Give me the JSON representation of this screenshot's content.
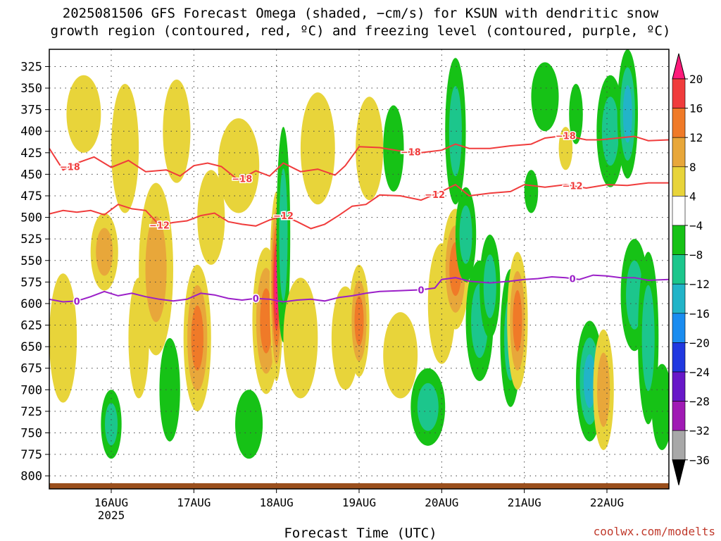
{
  "title": {
    "line1": "2025081506 GFS Forecast Omega (shaded, −cm/s) for KSUN with dendritic snow",
    "line2": "growth region (contoured, red, ºC) and freezing level (contoured, purple, ºC)"
  },
  "xlabel": "Forecast Time (UTC)",
  "credit": "coolwx.com/modelts",
  "chart_data": {
    "type": "heatmap",
    "title": "2025081506 GFS Forecast Omega (shaded, −cm/s) for KSUN with dendritic snow growth region (contoured, red, ºC) and freezing level (contoured, purple, ºC)",
    "xlabel": "Forecast Time (UTC)",
    "ylabel": "",
    "x_range_hours": [
      0,
      180
    ],
    "x_ticks": [
      {
        "hour": 18,
        "label": "16AUG",
        "sub": "2025"
      },
      {
        "hour": 42,
        "label": "17AUG",
        "sub": ""
      },
      {
        "hour": 66,
        "label": "18AUG",
        "sub": ""
      },
      {
        "hour": 90,
        "label": "19AUG",
        "sub": ""
      },
      {
        "hour": 114,
        "label": "20AUG",
        "sub": ""
      },
      {
        "hour": 138,
        "label": "21AUG",
        "sub": ""
      },
      {
        "hour": 162,
        "label": "22AUG",
        "sub": ""
      }
    ],
    "y_range_hpa": [
      815,
      305
    ],
    "y_ticks": [
      325,
      350,
      375,
      400,
      425,
      450,
      475,
      500,
      525,
      550,
      575,
      600,
      625,
      650,
      675,
      700,
      725,
      750,
      775,
      800
    ],
    "grid": true,
    "colorbar": {
      "labels": [
        "20",
        "16",
        "12",
        "8",
        "4",
        "−4",
        "−8",
        "−12",
        "−16",
        "−20",
        "−24",
        "−28",
        "−32",
        "−36"
      ],
      "colors": [
        "#ff1a7a",
        "#f03c3c",
        "#f07a28",
        "#e8a73a",
        "#e8d43a",
        "#ffffff",
        "#16c216",
        "#1cc68c",
        "#22b4c8",
        "#1a8cf0",
        "#2038e0",
        "#6818c8",
        "#a01ab4",
        "#a8a8a8",
        "#000000"
      ]
    },
    "omega_blobs": [
      {
        "t": 4,
        "p": 640,
        "dt": 4,
        "dp": 150,
        "v": 6
      },
      {
        "t": 10,
        "p": 380,
        "dt": 5,
        "dp": 90,
        "v": 5
      },
      {
        "t": 16,
        "p": 540,
        "dt": 4,
        "dp": 90,
        "v": 10
      },
      {
        "t": 18,
        "p": 740,
        "dt": 3,
        "dp": 80,
        "v": -8
      },
      {
        "t": 22,
        "p": 420,
        "dt": 4,
        "dp": 150,
        "v": 6
      },
      {
        "t": 26,
        "p": 640,
        "dt": 3,
        "dp": 140,
        "v": 5
      },
      {
        "t": 31,
        "p": 560,
        "dt": 5,
        "dp": 200,
        "v": 8
      },
      {
        "t": 35,
        "p": 700,
        "dt": 3,
        "dp": 120,
        "v": -6
      },
      {
        "t": 37,
        "p": 400,
        "dt": 4,
        "dp": 120,
        "v": 5
      },
      {
        "t": 43,
        "p": 640,
        "dt": 4,
        "dp": 170,
        "v": 12
      },
      {
        "t": 47,
        "p": 500,
        "dt": 4,
        "dp": 110,
        "v": 6
      },
      {
        "t": 55,
        "p": 440,
        "dt": 6,
        "dp": 110,
        "v": 6
      },
      {
        "t": 58,
        "p": 740,
        "dt": 4,
        "dp": 80,
        "v": -6
      },
      {
        "t": 63,
        "p": 620,
        "dt": 4,
        "dp": 170,
        "v": 12
      },
      {
        "t": 66,
        "p": 580,
        "dt": 2,
        "dp": 220,
        "v": 20
      },
      {
        "t": 68,
        "p": 520,
        "dt": 2,
        "dp": 250,
        "v": -10
      },
      {
        "t": 73,
        "p": 640,
        "dt": 5,
        "dp": 140,
        "v": 5
      },
      {
        "t": 78,
        "p": 420,
        "dt": 5,
        "dp": 130,
        "v": 5
      },
      {
        "t": 86,
        "p": 640,
        "dt": 4,
        "dp": 120,
        "v": 6
      },
      {
        "t": 90,
        "p": 620,
        "dt": 3,
        "dp": 130,
        "v": 12
      },
      {
        "t": 93,
        "p": 420,
        "dt": 4,
        "dp": 120,
        "v": 4
      },
      {
        "t": 100,
        "p": 420,
        "dt": 3,
        "dp": 100,
        "v": -6
      },
      {
        "t": 102,
        "p": 660,
        "dt": 5,
        "dp": 100,
        "v": 5
      },
      {
        "t": 110,
        "p": 720,
        "dt": 5,
        "dp": 90,
        "v": -8
      },
      {
        "t": 114,
        "p": 600,
        "dt": 4,
        "dp": 140,
        "v": 6
      },
      {
        "t": 118,
        "p": 560,
        "dt": 4,
        "dp": 140,
        "v": 12
      },
      {
        "t": 118,
        "p": 400,
        "dt": 3,
        "dp": 170,
        "v": -10
      },
      {
        "t": 121,
        "p": 520,
        "dt": 3,
        "dp": 110,
        "v": -8
      },
      {
        "t": 125,
        "p": 620,
        "dt": 4,
        "dp": 140,
        "v": -8
      },
      {
        "t": 128,
        "p": 580,
        "dt": 3,
        "dp": 120,
        "v": -10
      },
      {
        "t": 134,
        "p": 640,
        "dt": 3,
        "dp": 160,
        "v": -8
      },
      {
        "t": 136,
        "p": 620,
        "dt": 3,
        "dp": 160,
        "v": 14
      },
      {
        "t": 140,
        "p": 470,
        "dt": 2,
        "dp": 50,
        "v": -6
      },
      {
        "t": 144,
        "p": 360,
        "dt": 4,
        "dp": 80,
        "v": -6
      },
      {
        "t": 150,
        "p": 420,
        "dt": 2,
        "dp": 50,
        "v": 5
      },
      {
        "t": 153,
        "p": 380,
        "dt": 2,
        "dp": 70,
        "v": -6
      },
      {
        "t": 157,
        "p": 690,
        "dt": 4,
        "dp": 140,
        "v": -12
      },
      {
        "t": 161,
        "p": 700,
        "dt": 3,
        "dp": 140,
        "v": 10
      },
      {
        "t": 163,
        "p": 400,
        "dt": 4,
        "dp": 130,
        "v": -8
      },
      {
        "t": 168,
        "p": 380,
        "dt": 3,
        "dp": 150,
        "v": -12
      },
      {
        "t": 170,
        "p": 590,
        "dt": 4,
        "dp": 130,
        "v": -10
      },
      {
        "t": 174,
        "p": 640,
        "dt": 3,
        "dp": 200,
        "v": -8
      },
      {
        "t": 178,
        "p": 720,
        "dt": 3,
        "dp": 100,
        "v": -6
      }
    ],
    "series": [
      {
        "color": "#f03c3c",
        "label": "−18",
        "points": [
          [
            0,
            420
          ],
          [
            4,
            445
          ],
          [
            8,
            437
          ],
          [
            13,
            430
          ],
          [
            18,
            442
          ],
          [
            23,
            434
          ],
          [
            28,
            447
          ],
          [
            34,
            445
          ],
          [
            38,
            452
          ],
          [
            42,
            440
          ],
          [
            46,
            437
          ],
          [
            50,
            441
          ],
          [
            55,
            457
          ],
          [
            60,
            446
          ],
          [
            64,
            452
          ],
          [
            68,
            437
          ],
          [
            73,
            447
          ],
          [
            78,
            444
          ],
          [
            83,
            451
          ],
          [
            86,
            440
          ],
          [
            90,
            418
          ],
          [
            96,
            419
          ],
          [
            102,
            423
          ],
          [
            108,
            425
          ],
          [
            114,
            422
          ],
          [
            118,
            415
          ],
          [
            122,
            420
          ],
          [
            128,
            420
          ],
          [
            134,
            417
          ],
          [
            140,
            415
          ],
          [
            144,
            408
          ],
          [
            150,
            405
          ],
          [
            156,
            410
          ],
          [
            160,
            410
          ],
          [
            165,
            408
          ],
          [
            170,
            406
          ],
          [
            174,
            411
          ],
          [
            180,
            410
          ]
        ],
        "labels_at": [
          6,
          56,
          105,
          150
        ]
      },
      {
        "color": "#f03c3c",
        "label": "−12",
        "points": [
          [
            0,
            496
          ],
          [
            4,
            492
          ],
          [
            8,
            494
          ],
          [
            12,
            492
          ],
          [
            16,
            497
          ],
          [
            20,
            485
          ],
          [
            24,
            490
          ],
          [
            28,
            492
          ],
          [
            32,
            509
          ],
          [
            36,
            506
          ],
          [
            40,
            504
          ],
          [
            44,
            498
          ],
          [
            48,
            495
          ],
          [
            52,
            505
          ],
          [
            56,
            508
          ],
          [
            60,
            510
          ],
          [
            64,
            503
          ],
          [
            68,
            498
          ],
          [
            72,
            505
          ],
          [
            76,
            513
          ],
          [
            80,
            508
          ],
          [
            84,
            498
          ],
          [
            88,
            487
          ],
          [
            92,
            485
          ],
          [
            96,
            474
          ],
          [
            102,
            475
          ],
          [
            108,
            480
          ],
          [
            114,
            470
          ],
          [
            118,
            462
          ],
          [
            122,
            475
          ],
          [
            128,
            472
          ],
          [
            134,
            470
          ],
          [
            138,
            462
          ],
          [
            144,
            465
          ],
          [
            150,
            462
          ],
          [
            156,
            466
          ],
          [
            162,
            462
          ],
          [
            168,
            463
          ],
          [
            174,
            460
          ],
          [
            180,
            460
          ]
        ],
        "labels_at": [
          32,
          68,
          112,
          152
        ]
      },
      {
        "color": "#9b1fc8",
        "label": "0",
        "points": [
          [
            0,
            595
          ],
          [
            4,
            598
          ],
          [
            8,
            597
          ],
          [
            12,
            592
          ],
          [
            16,
            586
          ],
          [
            20,
            591
          ],
          [
            24,
            588
          ],
          [
            28,
            592
          ],
          [
            32,
            595
          ],
          [
            36,
            597
          ],
          [
            40,
            595
          ],
          [
            44,
            588
          ],
          [
            48,
            590
          ],
          [
            52,
            594
          ],
          [
            56,
            596
          ],
          [
            60,
            594
          ],
          [
            64,
            595
          ],
          [
            68,
            598
          ],
          [
            72,
            596
          ],
          [
            76,
            595
          ],
          [
            80,
            597
          ],
          [
            84,
            593
          ],
          [
            88,
            591
          ],
          [
            92,
            588
          ],
          [
            96,
            586
          ],
          [
            102,
            585
          ],
          [
            108,
            584
          ],
          [
            112,
            582
          ],
          [
            114,
            572
          ],
          [
            118,
            570
          ],
          [
            122,
            574
          ],
          [
            128,
            576
          ],
          [
            134,
            574
          ],
          [
            138,
            572
          ],
          [
            142,
            571
          ],
          [
            146,
            569
          ],
          [
            150,
            570
          ],
          [
            154,
            572
          ],
          [
            158,
            567
          ],
          [
            162,
            568
          ],
          [
            166,
            570
          ],
          [
            170,
            570
          ],
          [
            174,
            573
          ],
          [
            180,
            572
          ]
        ],
        "labels_at": [
          8,
          60,
          108,
          152
        ]
      }
    ]
  }
}
